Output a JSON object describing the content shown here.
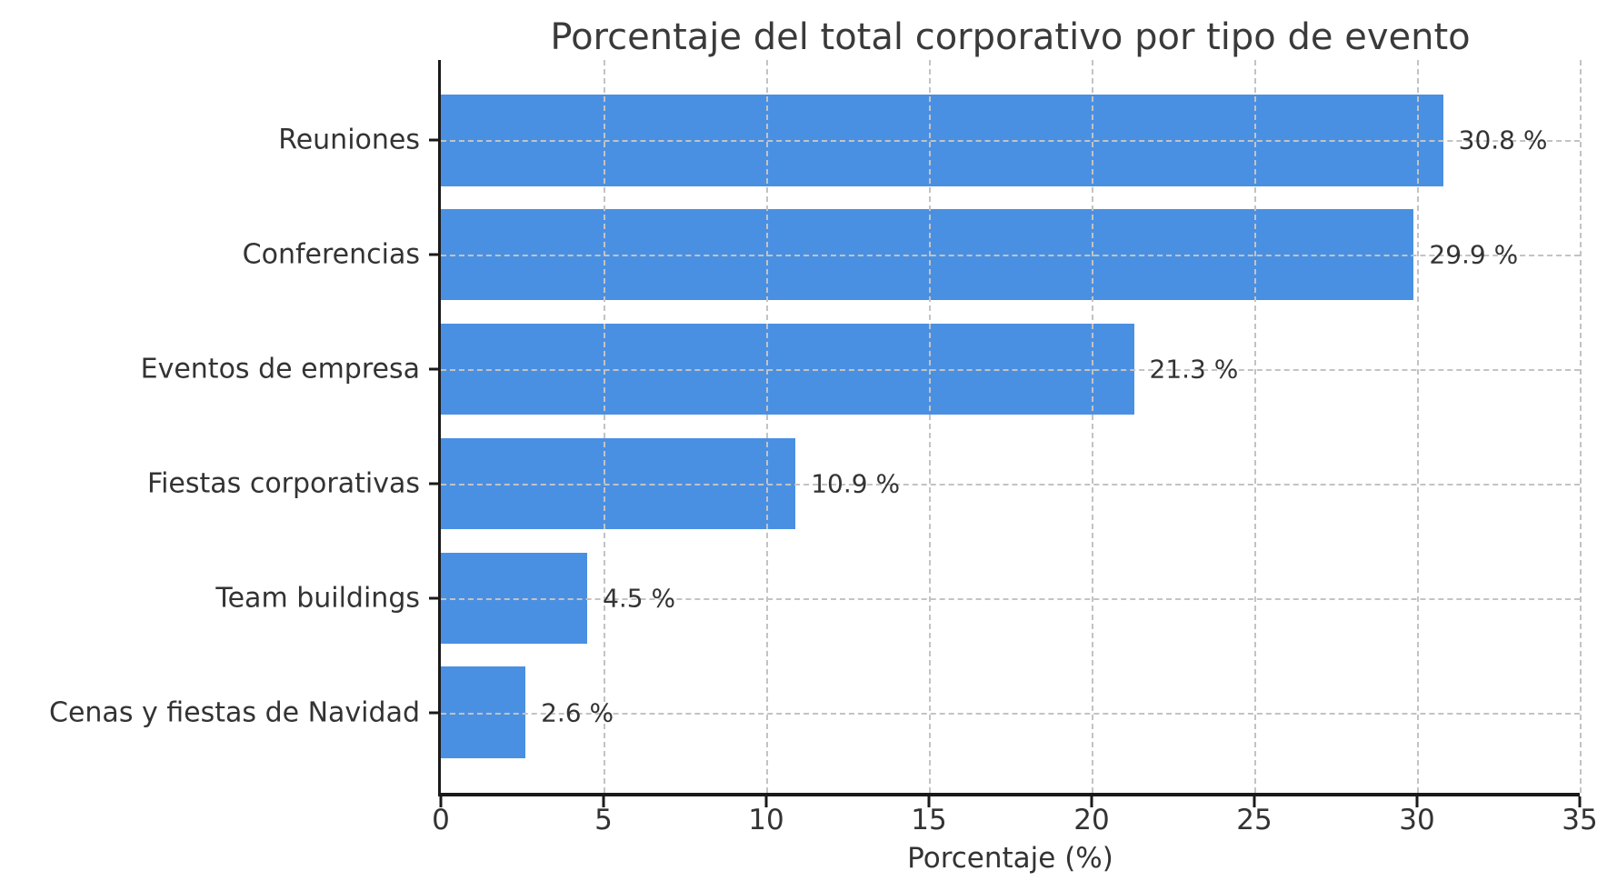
{
  "chart_data": {
    "type": "bar",
    "orientation": "horizontal",
    "title": "Porcentaje del total corporativo por tipo de evento",
    "xlabel": "Porcentaje (%)",
    "ylabel": "",
    "categories": [
      "Reuniones",
      "Conferencias",
      "Eventos de empresa",
      "Fiestas corporativas",
      "Team buildings",
      "Cenas y fiestas de Navidad"
    ],
    "values": [
      30.8,
      29.9,
      21.3,
      10.9,
      4.5,
      2.6
    ],
    "value_labels": [
      "30.8 %",
      "29.9 %",
      "21.3 %",
      "10.9 %",
      "4.5 %",
      "2.6 %"
    ],
    "xlim": [
      0,
      35
    ],
    "xticks": [
      0,
      5,
      10,
      15,
      20,
      25,
      30,
      35
    ],
    "xtick_labels": [
      "0",
      "5",
      "10",
      "15",
      "20",
      "25",
      "30",
      "35"
    ],
    "grid": "dashed gridlines on both axes, drawn above bars",
    "legend": "none",
    "colors": {
      "bar": "#4a90e2",
      "grid": "#c3c3c3",
      "axis": "#1a1a1a",
      "text": "#333333",
      "background": "#ffffff"
    }
  }
}
